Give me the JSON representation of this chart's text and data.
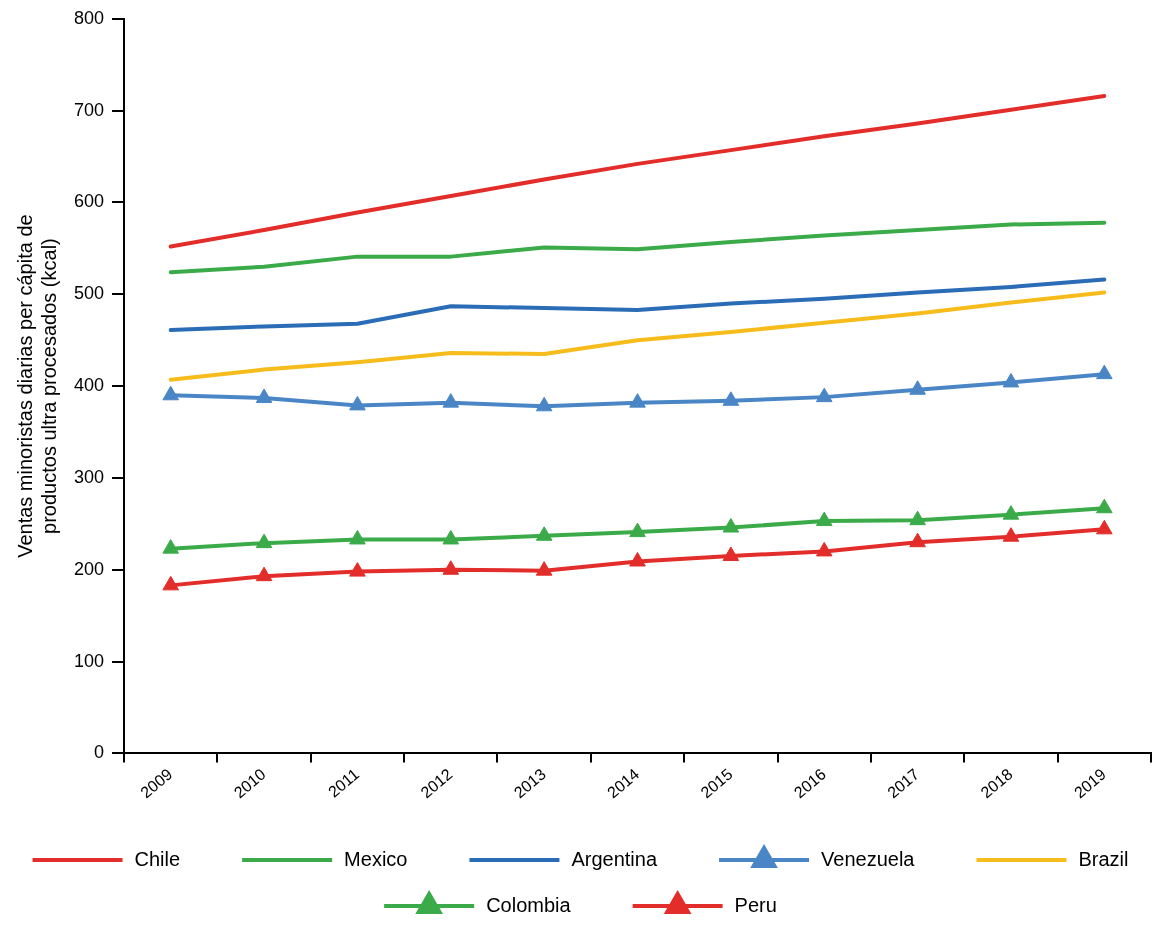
{
  "chart_data": {
    "type": "line",
    "ylabel": "Ventas minoristas diarias per cápita de\nproductos ultra procesados (kcal)",
    "categories": [
      "2009",
      "2010",
      "2011",
      "2012",
      "2013",
      "2014",
      "2015",
      "2016",
      "2017",
      "2018",
      "2019"
    ],
    "ylim": [
      0,
      800
    ],
    "yticks": [
      0,
      100,
      200,
      300,
      400,
      500,
      600,
      700,
      800
    ],
    "grid": false,
    "legend": "bottom",
    "line_style": "solid",
    "series": [
      {
        "name": "Chile",
        "color": "#e32d2a",
        "marker": "none",
        "values": [
          552,
          570,
          589,
          607,
          625,
          642,
          657,
          672,
          686,
          701,
          716
        ]
      },
      {
        "name": "Mexico",
        "color": "#3bab4a",
        "marker": "none",
        "values": [
          524,
          530,
          541,
          541,
          551,
          549,
          557,
          564,
          570,
          576,
          578
        ]
      },
      {
        "name": "Argentina",
        "color": "#2a6cb5",
        "marker": "none",
        "values": [
          461,
          465,
          468,
          487,
          485,
          483,
          490,
          495,
          502,
          508,
          516
        ]
      },
      {
        "name": "Venezuela",
        "color": "#4a86c6",
        "marker": "triangle",
        "values": [
          390,
          387,
          379,
          382,
          378,
          382,
          384,
          388,
          396,
          404,
          413
        ]
      },
      {
        "name": "Brazil",
        "color": "#f6bc1c",
        "marker": "none",
        "values": [
          407,
          418,
          426,
          436,
          435,
          450,
          459,
          469,
          479,
          491,
          502
        ]
      },
      {
        "name": "Colombia",
        "color": "#3bab4a",
        "marker": "triangle",
        "values": [
          223,
          229,
          233,
          233,
          237,
          241,
          246,
          253,
          254,
          260,
          267
        ]
      },
      {
        "name": "Peru",
        "color": "#e32d2a",
        "marker": "triangle",
        "values": [
          183,
          193,
          198,
          200,
          199,
          209,
          215,
          220,
          230,
          236,
          244
        ]
      }
    ]
  }
}
